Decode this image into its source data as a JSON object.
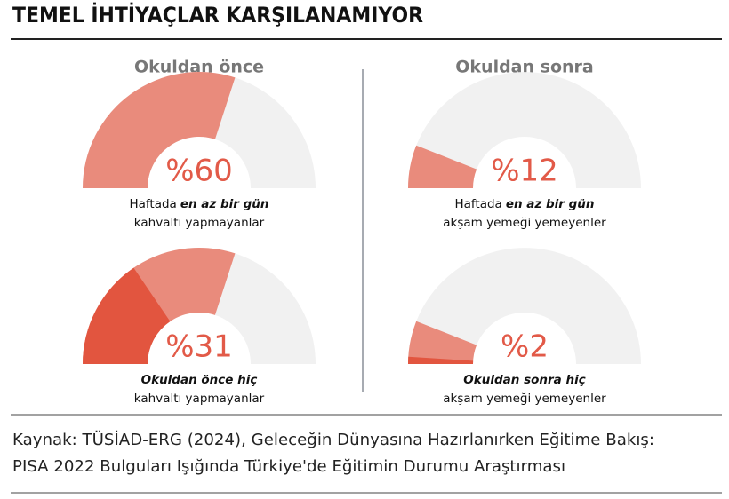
{
  "title": "TEMEL İHTİYAÇLAR KARŞILANAMIYOR",
  "column_titles": [
    "Okuldan önce",
    "Okuldan sonra"
  ],
  "chart_data": [
    {
      "type": "gauge",
      "ylim": [
        0,
        100
      ],
      "series": [
        {
          "color": "#e98b7c",
          "values": [
            60
          ],
          "value_labels": [
            "%60"
          ]
        }
      ],
      "caption": {
        "lead": "Haftada",
        "emphasis": "en az bir gün",
        "rest": "kahvaltı yapmayanlar"
      }
    },
    {
      "type": "gauge",
      "ylim": [
        0,
        100
      ],
      "series": [
        {
          "color": "#e98b7c",
          "values": [
            12
          ],
          "value_labels": [
            "%12"
          ]
        }
      ],
      "caption": {
        "lead": "Haftada",
        "emphasis": "en az bir gün",
        "rest": "akşam yemeği yemeyenler"
      }
    },
    {
      "type": "gauge",
      "ylim": [
        0,
        100
      ],
      "series": [
        {
          "color": "#e98b7c",
          "values": [
            60
          ]
        },
        {
          "color": "#e2553f",
          "values": [
            31
          ],
          "value_labels": [
            "%31"
          ]
        }
      ],
      "caption": {
        "emphasis": "Okuldan önce hiç",
        "rest": "kahvaltı yapmayanlar"
      }
    },
    {
      "type": "gauge",
      "ylim": [
        0,
        100
      ],
      "series": [
        {
          "color": "#e98b7c",
          "values": [
            12
          ]
        },
        {
          "color": "#e2553f",
          "values": [
            2
          ],
          "value_labels": [
            "%2"
          ]
        }
      ],
      "caption": {
        "emphasis": "Okuldan sonra hiç",
        "rest": "akşam yemeği yemeyenler"
      }
    }
  ],
  "source": [
    "Kaynak: TÜSİAD-ERG (2024), Geleceğin Dünyasına Hazırlanırken Eğitime Bakış:",
    "PISA 2022 Bulguları Işığında Türkiye'de Eğitimin Durumu Araştırması"
  ]
}
